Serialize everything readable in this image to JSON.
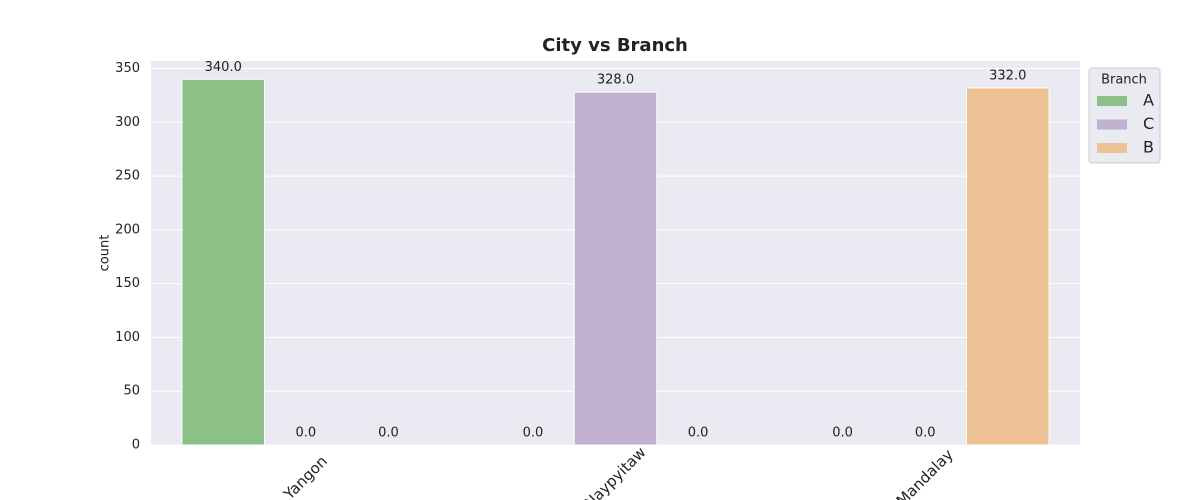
{
  "chart_data": {
    "type": "bar",
    "title": "City vs Branch",
    "y_label": "count",
    "categories": [
      "Yangon",
      "Naypyitaw",
      "Mandalay"
    ],
    "series": [
      {
        "name": "A",
        "color": "#8bc086",
        "values": [
          340,
          0,
          0
        ],
        "value_labels": [
          "340.0",
          "0.0",
          "0.0"
        ]
      },
      {
        "name": "C",
        "color": "#c0b1cf",
        "values": [
          0,
          328,
          0
        ],
        "value_labels": [
          "0.0",
          "328.0",
          "0.0"
        ]
      },
      {
        "name": "B",
        "color": "#eec194",
        "values": [
          0,
          0,
          332
        ],
        "value_labels": [
          "0.0",
          "0.0",
          "332.0"
        ]
      }
    ],
    "legend_title": "Branch",
    "legend_position": "upper right outside",
    "ylim": [
      0,
      357
    ],
    "yticks": [
      0,
      50,
      100,
      150,
      200,
      250,
      300,
      350
    ],
    "grid": true
  }
}
